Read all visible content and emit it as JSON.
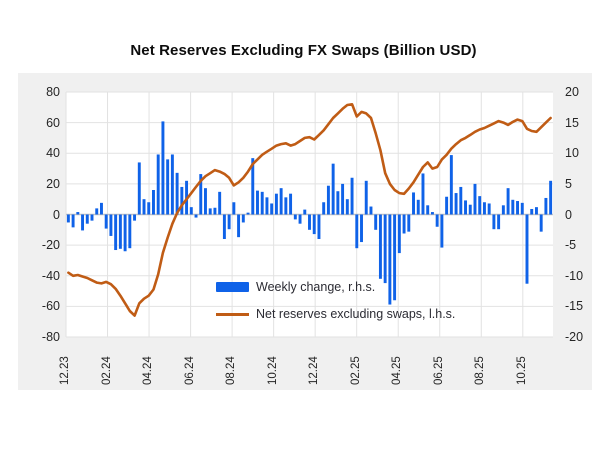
{
  "title": "Net Reserves Excluding FX Swaps (Billion USD)",
  "legend": {
    "bars": "Weekly change, r.h.s.",
    "line": "Net reserves excluding swaps, l.h.s."
  },
  "colors": {
    "bar": "#0f62e8",
    "line": "#c05c15",
    "panel": "#f0f0f0",
    "plot_bg": "#ffffff",
    "grid": "#e2e2e2",
    "zero_line": "#c4c4c4",
    "text": "#262626"
  },
  "chart_data": {
    "type": "combo",
    "title": "Net Reserves Excluding FX Swaps (Billion USD)",
    "x_unit": "weekly, month labels MM.YY",
    "x_ticks": [
      "12.23",
      "02.24",
      "04.24",
      "06.24",
      "08.24",
      "10.24",
      "12.24",
      "02.25",
      "04.25",
      "06.25",
      "08.25",
      "10.25"
    ],
    "left_axis": {
      "min": -80,
      "max": 80,
      "ticks": [
        80,
        60,
        40,
        20,
        0,
        -20,
        -40,
        -60,
        -80
      ]
    },
    "right_axis": {
      "min": -20,
      "max": 20,
      "ticks": [
        20,
        15,
        10,
        5,
        0,
        -5,
        -10,
        -15,
        -20
      ]
    },
    "grid": true,
    "legend_position": "inside-lower-center",
    "series": [
      {
        "name": "Weekly change, r.h.s.",
        "type": "bar",
        "axis": "right",
        "values": [
          -1.3,
          -2.1,
          0.4,
          -2.6,
          -1.5,
          -1.0,
          1.0,
          1.9,
          -2.3,
          -3.5,
          -5.8,
          -5.6,
          -6.0,
          -5.5,
          -1.0,
          8.5,
          2.5,
          2.0,
          4.0,
          9.8,
          15.2,
          9.0,
          9.8,
          6.8,
          4.5,
          5.5,
          1.2,
          -0.5,
          6.6,
          4.3,
          1.0,
          1.1,
          3.7,
          -4.0,
          -2.4,
          2.0,
          -3.7,
          -1.3,
          0.3,
          9.2,
          3.9,
          3.7,
          2.8,
          1.8,
          3.4,
          4.3,
          2.8,
          3.4,
          -0.8,
          -1.5,
          0.8,
          -2.5,
          -3.2,
          -4.0,
          2.0,
          4.7,
          8.3,
          3.8,
          5.0,
          2.5,
          6.0,
          -5.5,
          -4.5,
          5.5,
          1.3,
          -2.5,
          -10.5,
          -11.2,
          -14.7,
          -14.0,
          -6.3,
          -3.1,
          -2.8,
          3.6,
          2.4,
          6.7,
          1.5,
          0.4,
          -2.0,
          -5.4,
          2.9,
          9.7,
          3.5,
          4.5,
          2.3,
          1.6,
          5.0,
          3.0,
          2.0,
          1.8,
          -2.4,
          -2.4,
          1.5,
          4.3,
          2.4,
          2.2,
          1.9,
          -11.3,
          0.9,
          1.2,
          -2.8,
          2.7,
          5.5
        ]
      },
      {
        "name": "Net reserves excluding swaps, l.h.s.",
        "type": "line",
        "axis": "left",
        "values": [
          -38,
          -40,
          -39.5,
          -40.5,
          -41.5,
          -43,
          -44.5,
          -45,
          -44,
          -45.5,
          -48.5,
          -53,
          -58,
          -63,
          -66,
          -58,
          -55,
          -53,
          -49,
          -39,
          -25,
          -15,
          -6,
          1,
          6,
          10,
          14,
          18,
          22,
          25,
          27,
          29,
          28,
          26.5,
          24,
          19,
          21,
          24,
          28,
          33,
          36,
          39,
          41,
          43,
          45,
          46,
          46.5,
          45,
          46,
          48,
          50,
          50.5,
          49,
          52,
          55,
          59,
          63,
          66,
          69,
          71.5,
          72,
          64,
          67,
          66,
          63,
          53,
          42,
          27,
          20,
          16,
          14,
          13.5,
          17,
          21,
          26,
          31,
          34,
          30,
          31,
          36,
          39,
          43,
          46,
          48.5,
          50,
          52,
          54,
          55.5,
          56.5,
          58,
          59.5,
          61,
          60,
          58.5,
          60.5,
          62,
          61,
          56,
          54.5,
          54,
          57,
          60,
          63
        ]
      }
    ]
  }
}
